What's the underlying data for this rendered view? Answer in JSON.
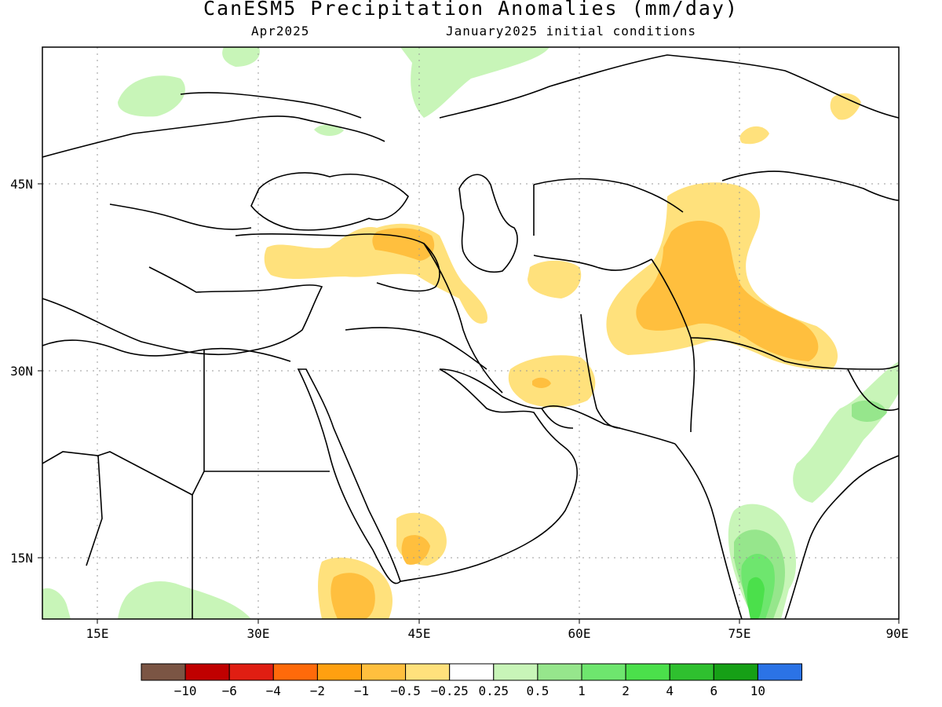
{
  "title": "CanESM5 Precipitation Anomalies (mm/day)",
  "subtitle_left": "Apr2025",
  "subtitle_right": "January2025 initial conditions",
  "axes": {
    "x_ticks": [
      "15E",
      "30E",
      "45E",
      "60E",
      "75E",
      "90E"
    ],
    "y_ticks": [
      "45N",
      "30N",
      "15N"
    ]
  },
  "colorbar": {
    "colors": [
      "#7b5544",
      "#c00000",
      "#e01e12",
      "#ff6a0a",
      "#ffa010",
      "#ffbf3e",
      "#ffe17c",
      "#ffffff",
      "#c8f5b8",
      "#96e68c",
      "#6ee66e",
      "#4be04b",
      "#2fc02f",
      "#16a016",
      "#2b73e6"
    ],
    "labels": [
      "−10",
      "−6",
      "−4",
      "−2",
      "−1",
      "−0.5",
      "−0.25",
      "0.25",
      "0.5",
      "1",
      "2",
      "4",
      "6",
      "10"
    ]
  }
}
